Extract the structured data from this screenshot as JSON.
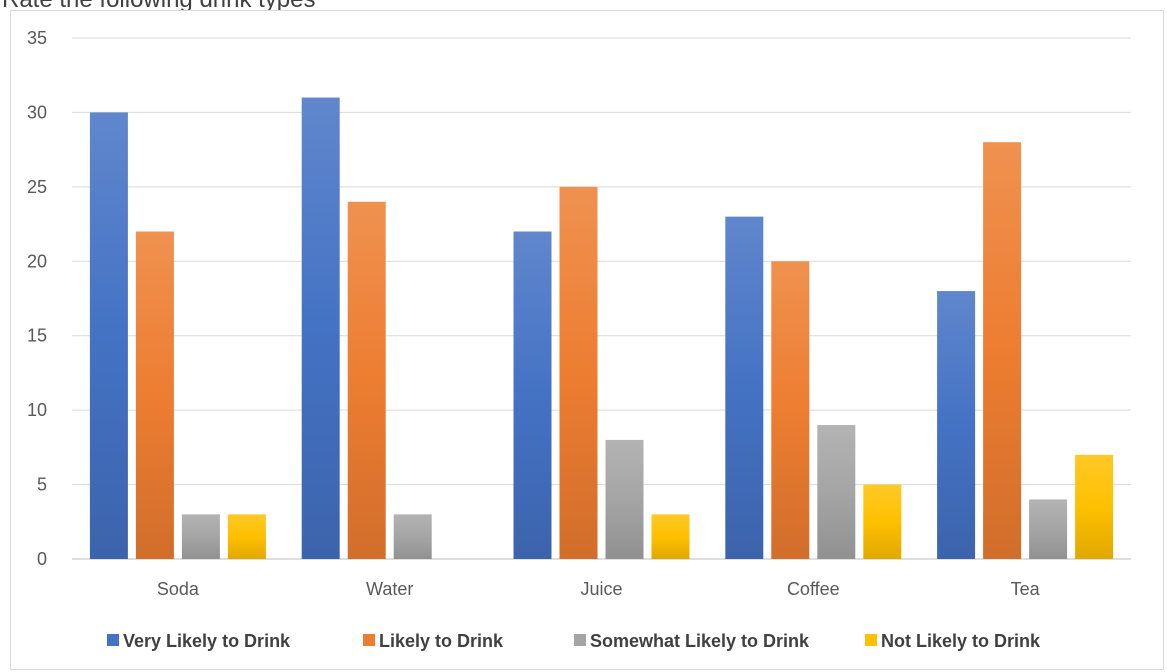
{
  "chart_data": {
    "type": "bar",
    "title": "Rate the following drink types",
    "categories": [
      "Soda",
      "Water",
      "Juice",
      "Coffee",
      "Tea"
    ],
    "series": [
      {
        "name": "Very Likely to Drink",
        "values": [
          30,
          31,
          22,
          23,
          18
        ],
        "color": "#4472C4"
      },
      {
        "name": "Likely to Drink",
        "values": [
          22,
          24,
          25,
          20,
          28
        ],
        "color": "#ED7D31"
      },
      {
        "name": "Somewhat Likely to Drink",
        "values": [
          3,
          3,
          8,
          9,
          4
        ],
        "color": "#A5A5A5"
      },
      {
        "name": "Not Likely to Drink",
        "values": [
          3,
          0,
          3,
          5,
          7
        ],
        "color": "#FFC000"
      }
    ],
    "yticks": [
      "0",
      "5",
      "10",
      "15",
      "20",
      "25",
      "30",
      "35"
    ],
    "ylim": [
      0,
      35
    ],
    "grid": true,
    "legend": "bottom"
  }
}
